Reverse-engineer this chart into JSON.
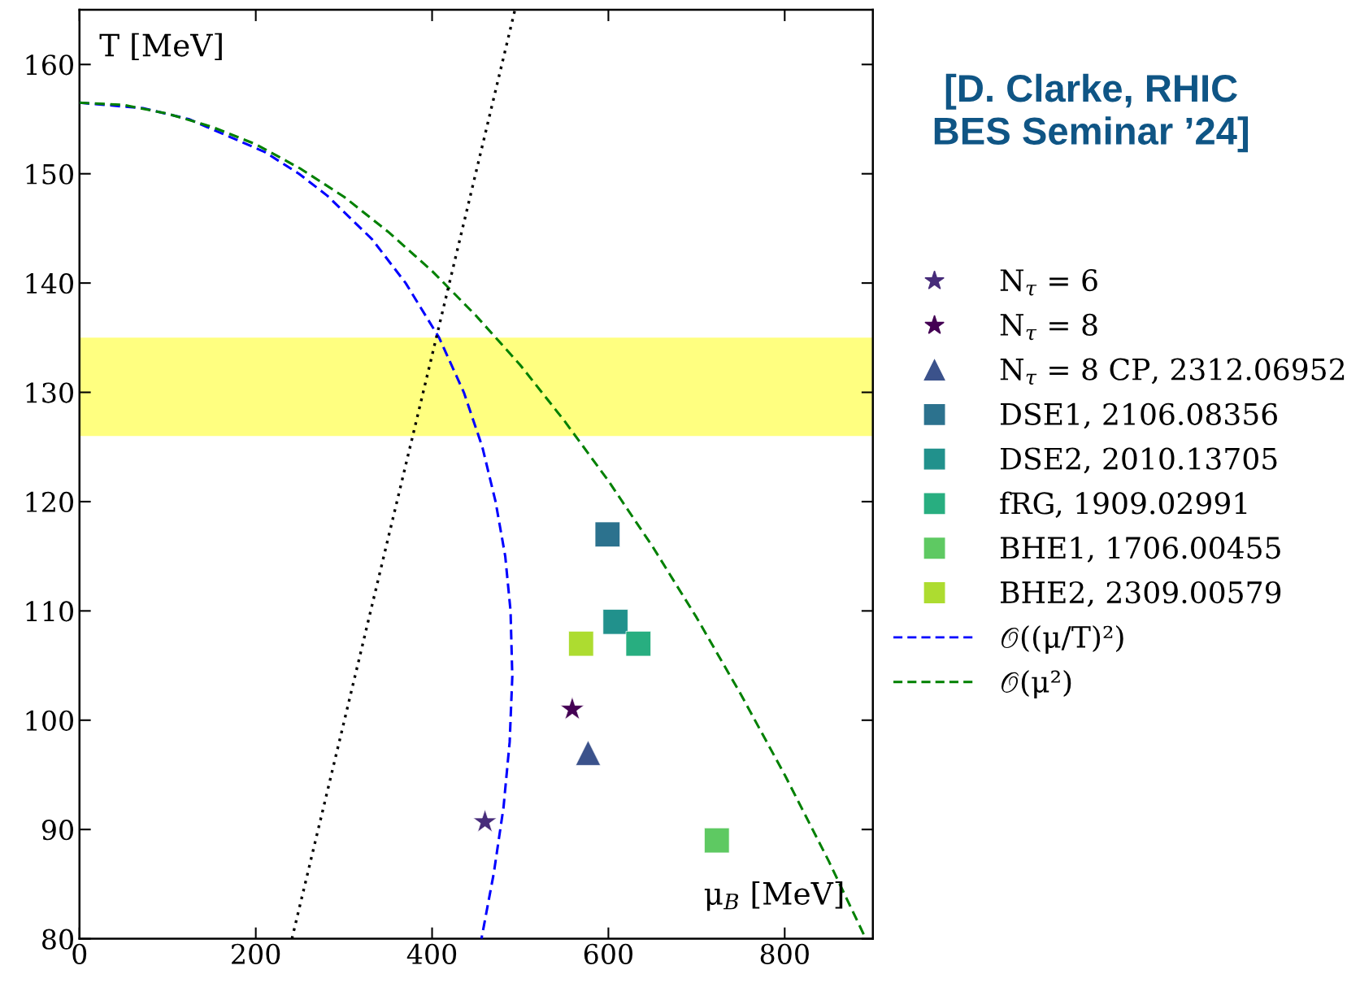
{
  "chart_data": {
    "type": "scatter",
    "xlabel": "μ$_{B}$ [MeV]",
    "ylabel": "T [MeV]",
    "annotations": [
      "[D. Clarke, RHIC\nBES Seminar ’24]"
    ],
    "xlim": [
      0,
      900
    ],
    "ylim": [
      80,
      165
    ],
    "xticks": [
      0,
      200,
      400,
      600,
      800
    ],
    "yticks": [
      80,
      90,
      100,
      110,
      120,
      130,
      140,
      150,
      160
    ],
    "grid": false,
    "legend": "right",
    "bands": [
      {
        "axis": "y",
        "from": 126,
        "to": 135,
        "color": "#ffff80"
      }
    ],
    "series": [
      {
        "name": "N$_{τ}$ = 6",
        "marker": "star",
        "color": "#472c7a",
        "x": [
          460
        ],
        "values": [
          90.7
        ]
      },
      {
        "name": "N$_{τ}$ = 8",
        "marker": "star",
        "color": "#440154",
        "x": [
          559
        ],
        "values": [
          101
        ]
      },
      {
        "name": "N$_{τ}$ = 8 CP, 2312.06952",
        "marker": "triangle",
        "color": "#3b528b",
        "x": [
          577
        ],
        "values": [
          97
        ]
      },
      {
        "name": "DSE1, 2106.08356",
        "marker": "square",
        "color": "#2c728e",
        "x": [
          599
        ],
        "values": [
          117
        ]
      },
      {
        "name": "DSE2, 2010.13705",
        "marker": "square",
        "color": "#21918c",
        "x": [
          608
        ],
        "values": [
          109
        ]
      },
      {
        "name": "fRG, 1909.02991",
        "marker": "square",
        "color": "#28ae80",
        "x": [
          634
        ],
        "values": [
          107
        ]
      },
      {
        "name": "BHE1, 1706.00455",
        "marker": "square",
        "color": "#5ec962",
        "x": [
          723
        ],
        "values": [
          89
        ]
      },
      {
        "name": "BHE2, 2309.00579",
        "marker": "square",
        "color": "#addc30",
        "x": [
          569
        ],
        "values": [
          107
        ]
      },
      {
        "name": "𝒪((μ/T)²)",
        "type": "line",
        "line_style": "dashed",
        "marker": "none",
        "color": "#0000ff",
        "x": [
          0,
          72,
          124,
          210,
          249,
          281,
          332,
          370,
          408,
          436,
          457,
          472,
          483,
          489,
          491,
          488,
          481,
          470,
          456
        ],
        "values": [
          156.5,
          156,
          155,
          152,
          150,
          148,
          144,
          140,
          135,
          130,
          125,
          120,
          115,
          110,
          104,
          98,
          92,
          86,
          80
        ]
      },
      {
        "name": "𝒪(μ²)",
        "type": "line",
        "line_style": "dashed",
        "marker": "none",
        "color": "#008000",
        "x": [
          0,
          50,
          100,
          150,
          200,
          250,
          300,
          350,
          400,
          450,
          500,
          550,
          600,
          650,
          700,
          750,
          800,
          850,
          892
        ],
        "values": [
          156.5,
          156.3,
          155.5,
          154.3,
          152.7,
          150.5,
          147.9,
          144.7,
          141.1,
          137.0,
          132.5,
          127.4,
          121.9,
          115.9,
          109.4,
          102.4,
          95.0,
          87.1,
          80.0
        ]
      },
      {
        "type": "line",
        "line_style": "dotted",
        "marker": "none",
        "color": "#000000",
        "x": [
          241,
          378,
          494
        ],
        "values": [
          80,
          126,
          165
        ]
      }
    ]
  }
}
